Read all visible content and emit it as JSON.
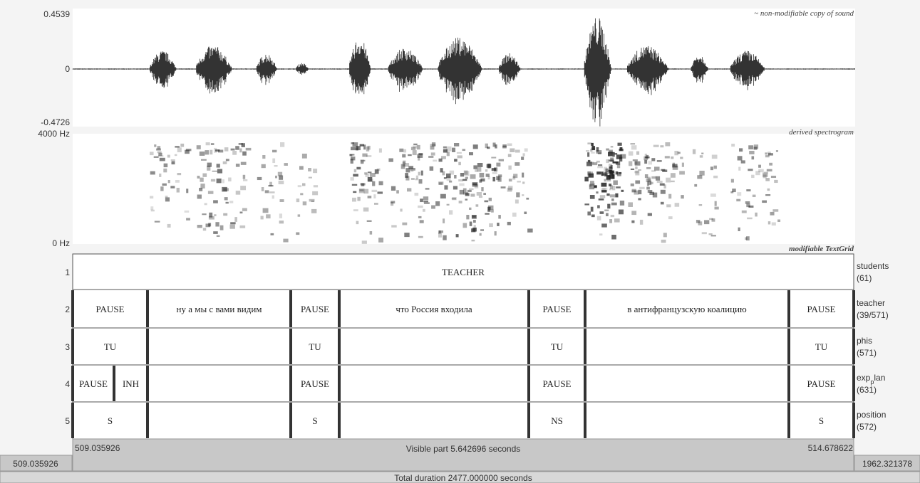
{
  "sound": {
    "label": "~ non-modifiable copy of sound",
    "max": "0.4539",
    "zero": "0",
    "min": "-0.4726"
  },
  "spectrogram": {
    "label": "derived spectrogram",
    "top": "4000 Hz",
    "bottom": "0 Hz"
  },
  "textgrid": {
    "label": "modifiable TextGrid",
    "tiers": [
      {
        "number": "1",
        "name": "students",
        "count": "(61)",
        "intervals": [
          "TEACHER"
        ]
      },
      {
        "number": "2",
        "name": "teacher",
        "count": "(39/571)",
        "intervals": [
          "PAUSE",
          "ну а мы с вами видим",
          "PAUSE",
          "что Россия входила",
          "PAUSE",
          "в антифранцузскую коалицию",
          "PAUSE"
        ]
      },
      {
        "number": "3",
        "name": "phis",
        "count": "(571)",
        "intervals": [
          "TU",
          null,
          "TU",
          null,
          "TU",
          null,
          "TU"
        ]
      },
      {
        "number": "4",
        "name": [
          "exp",
          "p",
          "lan"
        ],
        "count": "(631)",
        "intervals": [
          "PAUSE",
          "INH",
          null,
          "PAUSE",
          null,
          "PAUSE",
          null,
          "PAUSE"
        ]
      },
      {
        "number": "5",
        "name": "position",
        "count": "(572)",
        "intervals": [
          "S",
          null,
          "S",
          null,
          "NS",
          null,
          "S"
        ]
      }
    ]
  },
  "time": {
    "window_start": "509.035926",
    "visible_start": "509.035926",
    "visible_part": "Visible part 5.642696 seconds",
    "visible_end": "514.678622",
    "window_end": "1962.321378",
    "total": "Total duration 2477.000000 seconds"
  }
}
